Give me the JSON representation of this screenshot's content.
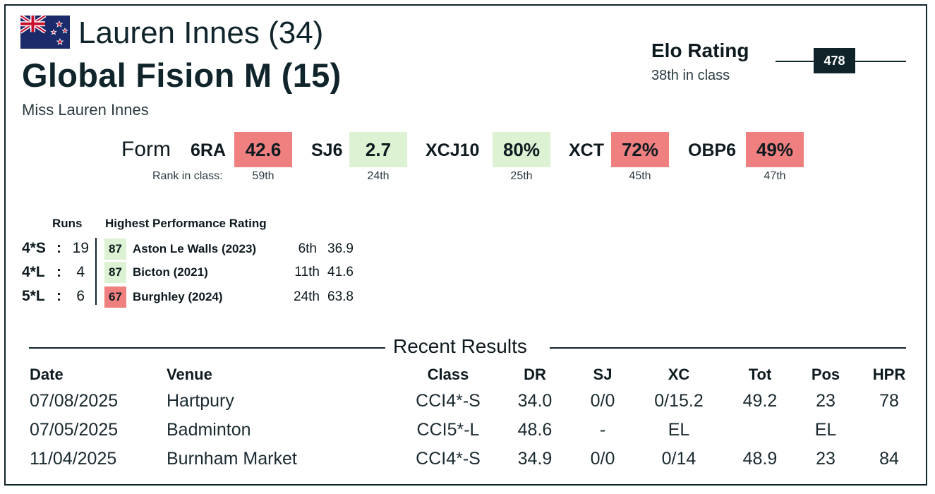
{
  "rider": {
    "name_age": "Lauren Innes (34)",
    "owner": "Miss Lauren Innes",
    "flag_icon": "new-zealand-flag-icon"
  },
  "horse": {
    "name_age": "Global Fision M (15)"
  },
  "elo": {
    "title": "Elo Rating",
    "class_rank": "38th in class",
    "value": "478"
  },
  "form": {
    "label": "Form",
    "rank_label": "Rank in class:",
    "metrics": [
      {
        "name": "6RA",
        "value": "42.6",
        "rank": "59th",
        "status": "bad"
      },
      {
        "name": "SJ6",
        "value": "2.7",
        "rank": "24th",
        "status": "good"
      },
      {
        "name": "XCJ10",
        "value": "80%",
        "rank": "25th",
        "status": "good"
      },
      {
        "name": "XCT",
        "value": "72%",
        "rank": "45th",
        "status": "bad"
      },
      {
        "name": "OBP6",
        "value": "49%",
        "rank": "47th",
        "status": "bad"
      }
    ]
  },
  "hpr": {
    "runs_header": "Runs",
    "hpr_header": "Highest Performance Rating",
    "rows": [
      {
        "level": "4*S",
        "sep": ":",
        "runs": "19",
        "hpr": "87",
        "status": "good",
        "venue": "Aston Le Walls  (2023)",
        "pos": "6th",
        "score": "36.9"
      },
      {
        "level": "4*L",
        "sep": ":",
        "runs": "4",
        "hpr": "87",
        "status": "good",
        "venue": "Bicton  (2021)",
        "pos": "11th",
        "score": "41.6"
      },
      {
        "level": "5*L",
        "sep": ":",
        "runs": "6",
        "hpr": "67",
        "status": "bad",
        "venue": "Burghley  (2024)",
        "pos": "24th",
        "score": "63.8"
      }
    ]
  },
  "recent": {
    "title": "Recent Results",
    "columns": [
      "Date",
      "Venue",
      "Class",
      "DR",
      "SJ",
      "XC",
      "Tot",
      "Pos",
      "HPR"
    ],
    "rows": [
      [
        "07/08/2025",
        "Hartpury",
        "CCI4*-S",
        "34.0",
        "0/0",
        "0/15.2",
        "49.2",
        "23",
        "78"
      ],
      [
        "07/05/2025",
        "Badminton",
        "CCI5*-L",
        "48.6",
        "-",
        "EL",
        "",
        "EL",
        ""
      ],
      [
        "11/04/2025",
        "Burnham Market",
        "CCI4*-S",
        "34.9",
        "0/0",
        "0/14",
        "48.9",
        "23",
        "84"
      ]
    ]
  },
  "colors": {
    "bad": "#f08080",
    "good": "#dcf2d3",
    "dark": "#0f2329"
  }
}
